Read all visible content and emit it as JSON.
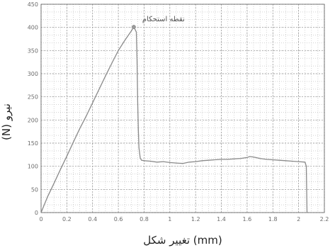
{
  "chart_data": {
    "type": "line",
    "title": "",
    "xlabel": "تغییر شکل (mm)",
    "ylabel": "(N) نیرو",
    "xlim": [
      0,
      2.2
    ],
    "ylim": [
      0,
      450
    ],
    "x_ticks": [
      0,
      0.2,
      0.4,
      0.6,
      0.8,
      1.0,
      1.2,
      1.4,
      1.6,
      1.8,
      2.0,
      2.2
    ],
    "y_ticks": [
      0,
      50,
      100,
      150,
      200,
      250,
      300,
      350,
      400,
      450
    ],
    "x_tick_labels": [
      "0",
      "0.2",
      "0.4",
      "0.6",
      "0.8",
      "1",
      "1.2",
      "1.4",
      "1.6",
      "1.8",
      "2",
      "2.2"
    ],
    "y_tick_labels": [
      "0",
      "50",
      "100",
      "150",
      "200",
      "250",
      "300",
      "350",
      "400",
      "450"
    ],
    "grid": true,
    "line_color": "#8a8a8a",
    "annotation": {
      "text": "نقطه استحکام",
      "x": 0.72,
      "y": 401
    },
    "series": [
      {
        "x": [
          0,
          0.05,
          0.1,
          0.15,
          0.2,
          0.25,
          0.3,
          0.35,
          0.4,
          0.45,
          0.5,
          0.55,
          0.6,
          0.65,
          0.7,
          0.72,
          0.74,
          0.745,
          0.75,
          0.755,
          0.76,
          0.77,
          0.78,
          0.8,
          0.85,
          0.9,
          0.95,
          1.0,
          1.05,
          1.1,
          1.15,
          1.2,
          1.25,
          1.3,
          1.35,
          1.4,
          1.45,
          1.5,
          1.55,
          1.6,
          1.62,
          1.65,
          1.7,
          1.75,
          1.8,
          1.85,
          1.9,
          1.95,
          2.0,
          2.05,
          2.06,
          2.065
        ],
        "y": [
          0,
          34,
          63,
          93,
          122,
          152,
          181,
          208,
          237,
          266,
          295,
          323,
          350,
          372,
          392,
          401,
          390,
          330,
          240,
          180,
          140,
          118,
          113,
          112,
          111,
          109,
          110,
          108,
          107,
          106,
          109,
          110,
          112,
          113,
          114,
          115,
          115,
          116,
          117,
          119,
          121,
          120,
          117,
          115,
          114,
          113,
          112,
          111,
          110,
          109,
          100,
          0
        ]
      }
    ]
  }
}
